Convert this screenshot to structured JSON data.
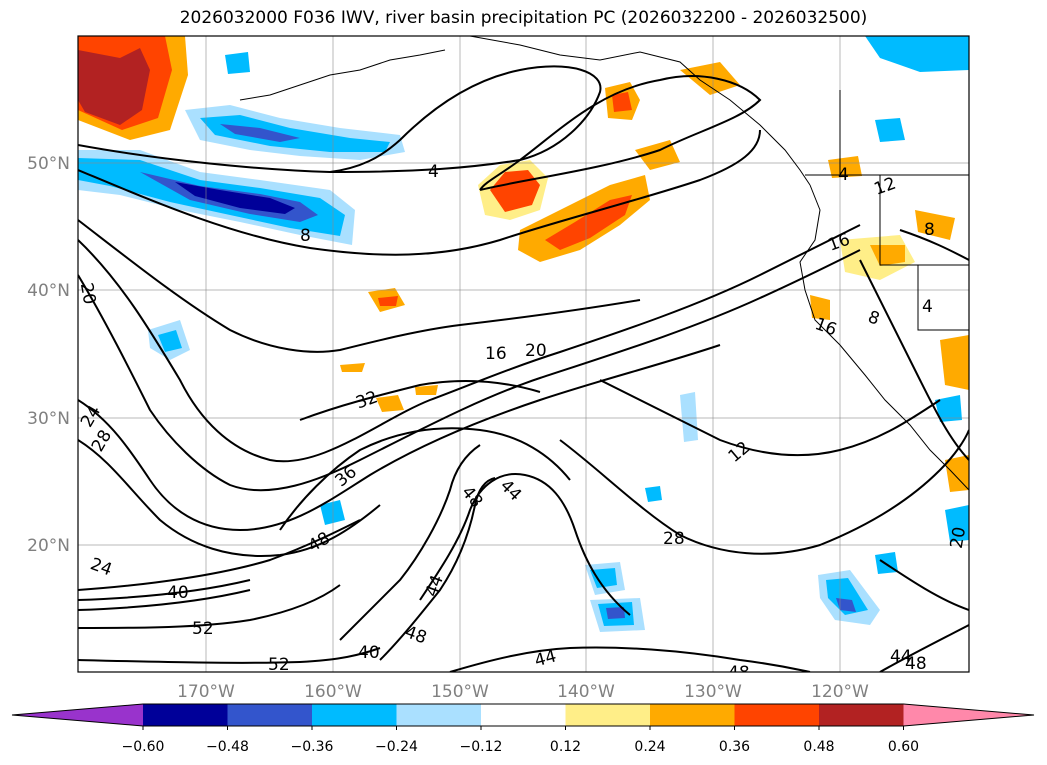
{
  "title": "2026032000 F036 IWV, river basin precipitation PC (2026032200 - 2026032500)",
  "axes": {
    "lat_labels": [
      "50°N",
      "40°N",
      "30°N",
      "20°N"
    ],
    "lon_labels": [
      "170°W",
      "160°W",
      "150°W",
      "140°W",
      "130°W",
      "120°W"
    ],
    "label_color": "#808080"
  },
  "colorbar": {
    "colors": [
      "#9933cc",
      "#000099",
      "#3355cc",
      "#00bbff",
      "#aae0ff",
      "#ffffff",
      "#ffee88",
      "#ffaa00",
      "#ff4400",
      "#b22222",
      "#ff88aa"
    ],
    "tick_labels": [
      "−0.60",
      "−0.48",
      "−0.36",
      "−0.24",
      "−0.12",
      "0.12",
      "0.24",
      "0.36",
      "0.48",
      "0.60"
    ]
  },
  "contour_labels": [
    "4",
    "8",
    "12",
    "16",
    "20",
    "24",
    "28",
    "32",
    "36",
    "40",
    "44",
    "48",
    "52"
  ],
  "palette": {
    "dark_red": "#b22222",
    "red": "#ff4400",
    "orange": "#ffaa00",
    "yellow": "#ffee88",
    "light_blue": "#aae0ff",
    "blue": "#00bbff",
    "mid_blue": "#3355cc",
    "navy": "#000099"
  }
}
